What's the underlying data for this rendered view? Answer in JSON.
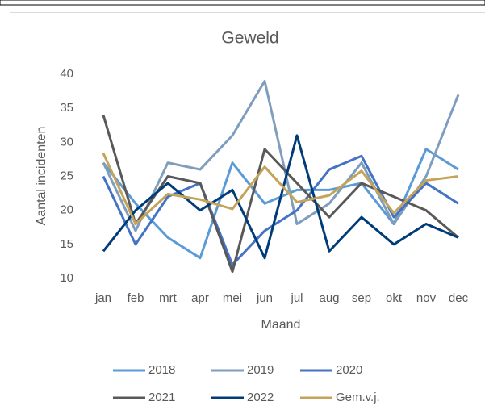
{
  "chart_data": {
    "type": "line",
    "title": "Geweld",
    "x_label": "Maand",
    "y_label": "Aantal incidenten",
    "categories": [
      "jan",
      "feb",
      "mrt",
      "apr",
      "mei",
      "jun",
      "jul",
      "aug",
      "sep",
      "okt",
      "nov",
      "dec"
    ],
    "ylim": [
      10,
      40
    ],
    "yticks": [
      10,
      15,
      20,
      25,
      30,
      35,
      40
    ],
    "grid": false,
    "legend": "bottom",
    "series": [
      {
        "name": "2018",
        "color": "#5b9bd5",
        "values": [
          27,
          21,
          16,
          13,
          27,
          21,
          23,
          23,
          24,
          18,
          29,
          26
        ]
      },
      {
        "name": "2019",
        "color": "#7f9dbd",
        "values": [
          27,
          17,
          27,
          26,
          31,
          39,
          18,
          21,
          27,
          18,
          25,
          37
        ]
      },
      {
        "name": "2020",
        "color": "#4472c4",
        "values": [
          25,
          15,
          22,
          24,
          12,
          17,
          20,
          26,
          28,
          19,
          24,
          21
        ]
      },
      {
        "name": "2021",
        "color": "#595959",
        "values": [
          34,
          18,
          25,
          24,
          11,
          29,
          24,
          19,
          24,
          22,
          20,
          16
        ]
      },
      {
        "name": "2022",
        "color": "#003c78",
        "values": [
          14,
          20,
          24,
          20,
          23,
          13,
          31,
          14,
          19,
          15,
          18,
          16
        ]
      },
      {
        "name": "Gem.v.j.",
        "color": "#c4a35a",
        "values": [
          28.4,
          18,
          22.4,
          21.6,
          20.2,
          26.4,
          21.2,
          22.2,
          25.8,
          19.6,
          24.4,
          25
        ]
      }
    ]
  }
}
